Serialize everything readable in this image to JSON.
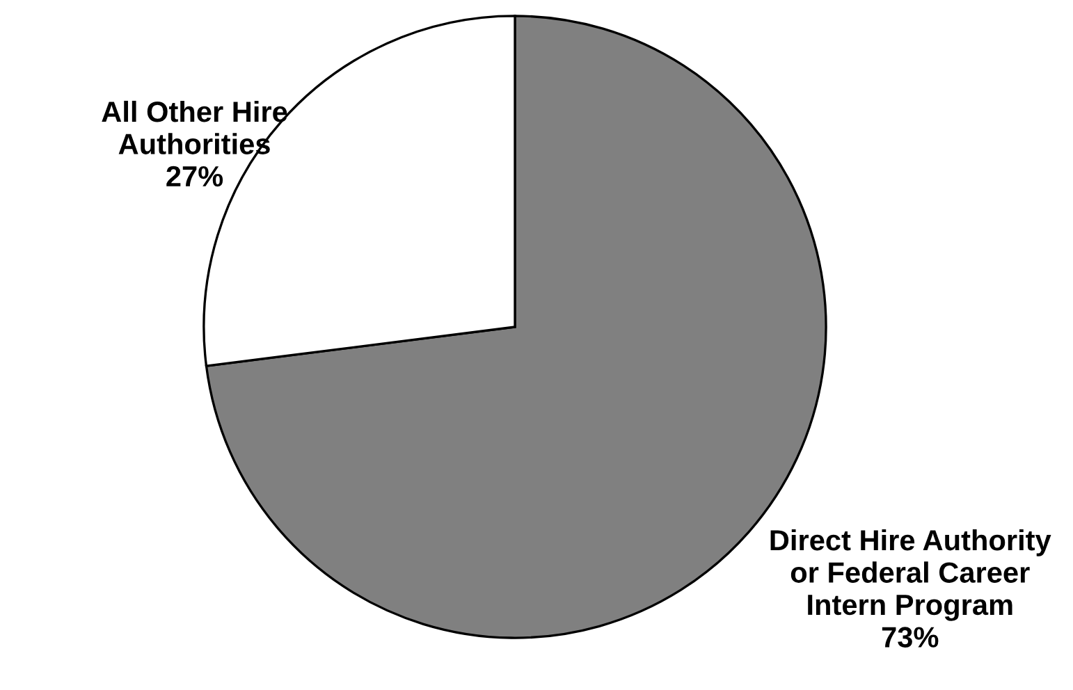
{
  "chart_data": {
    "type": "pie",
    "categories": [
      "Direct Hire Authority\nor Federal Career\nIntern Program",
      "All Other Hire\nAuthorities"
    ],
    "values": [
      73,
      27
    ],
    "colors": [
      "#808080",
      "#ffffff"
    ],
    "value_labels": [
      "73%",
      "27%"
    ]
  }
}
